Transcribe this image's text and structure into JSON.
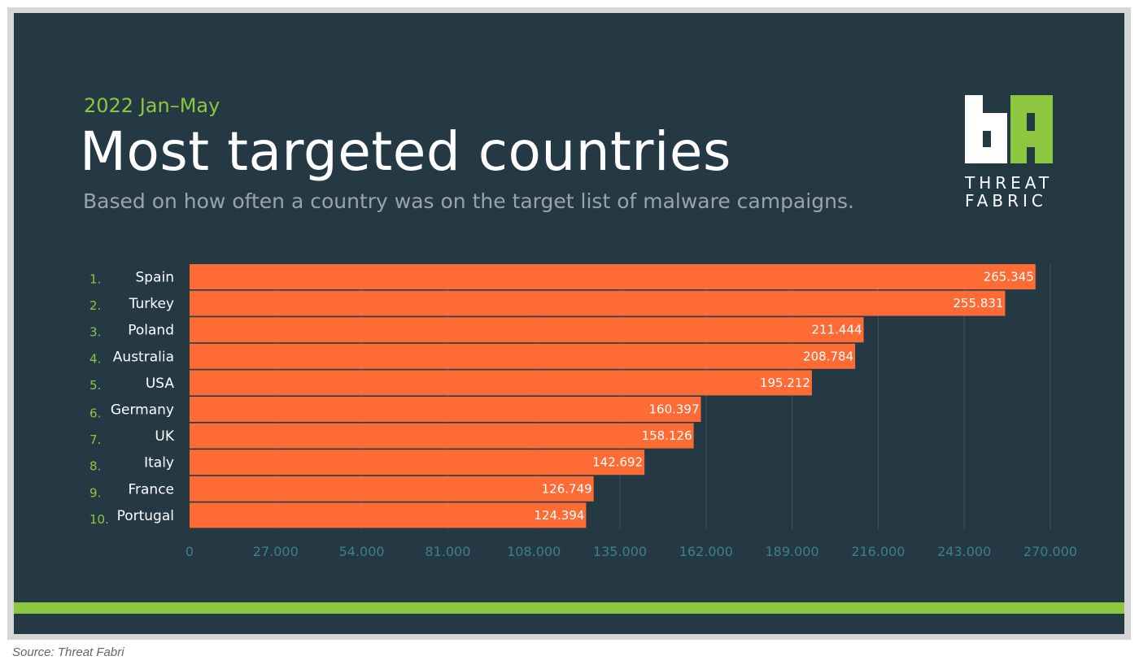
{
  "header": {
    "period": "2022 Jan–May",
    "title": "Most targeted countries",
    "subtitle": "Based on how often a country was on the target list of malware campaigns."
  },
  "logo": {
    "line1": "THREAT",
    "line2": "FABRIC",
    "colors": {
      "white": "#ffffff",
      "green": "#8dc63f"
    }
  },
  "source": "Source: Threat Fabri",
  "colors": {
    "background": "#243944",
    "bar": "#ff6b35",
    "accent": "#8dc63f",
    "tick_label": "#3f7f8a"
  },
  "chart_data": {
    "type": "bar",
    "orientation": "horizontal",
    "ranks": [
      "1.",
      "2.",
      "3.",
      "4.",
      "5.",
      "6.",
      "7.",
      "8.",
      "9.",
      "10."
    ],
    "categories": [
      "Spain",
      "Turkey",
      "Poland",
      "Australia",
      "USA",
      "Germany",
      "UK",
      "Italy",
      "France",
      "Portugal"
    ],
    "values": [
      265345,
      255831,
      211444,
      208784,
      195212,
      160397,
      158126,
      142692,
      126749,
      124394
    ],
    "value_labels": [
      "265.345",
      "255.831",
      "211.444",
      "208.784",
      "195.212",
      "160.397",
      "158.126",
      "142.692",
      "126.749",
      "124.394"
    ],
    "xticks": [
      0,
      27000,
      54000,
      81000,
      108000,
      135000,
      162000,
      189000,
      216000,
      243000,
      270000
    ],
    "xtick_labels": [
      "0",
      "27.000",
      "54.000",
      "81.000",
      "108.000",
      "135.000",
      "162.000",
      "189.000",
      "216.000",
      "243.000",
      "270.000"
    ],
    "xlim": [
      0,
      270000
    ],
    "grid": true
  }
}
